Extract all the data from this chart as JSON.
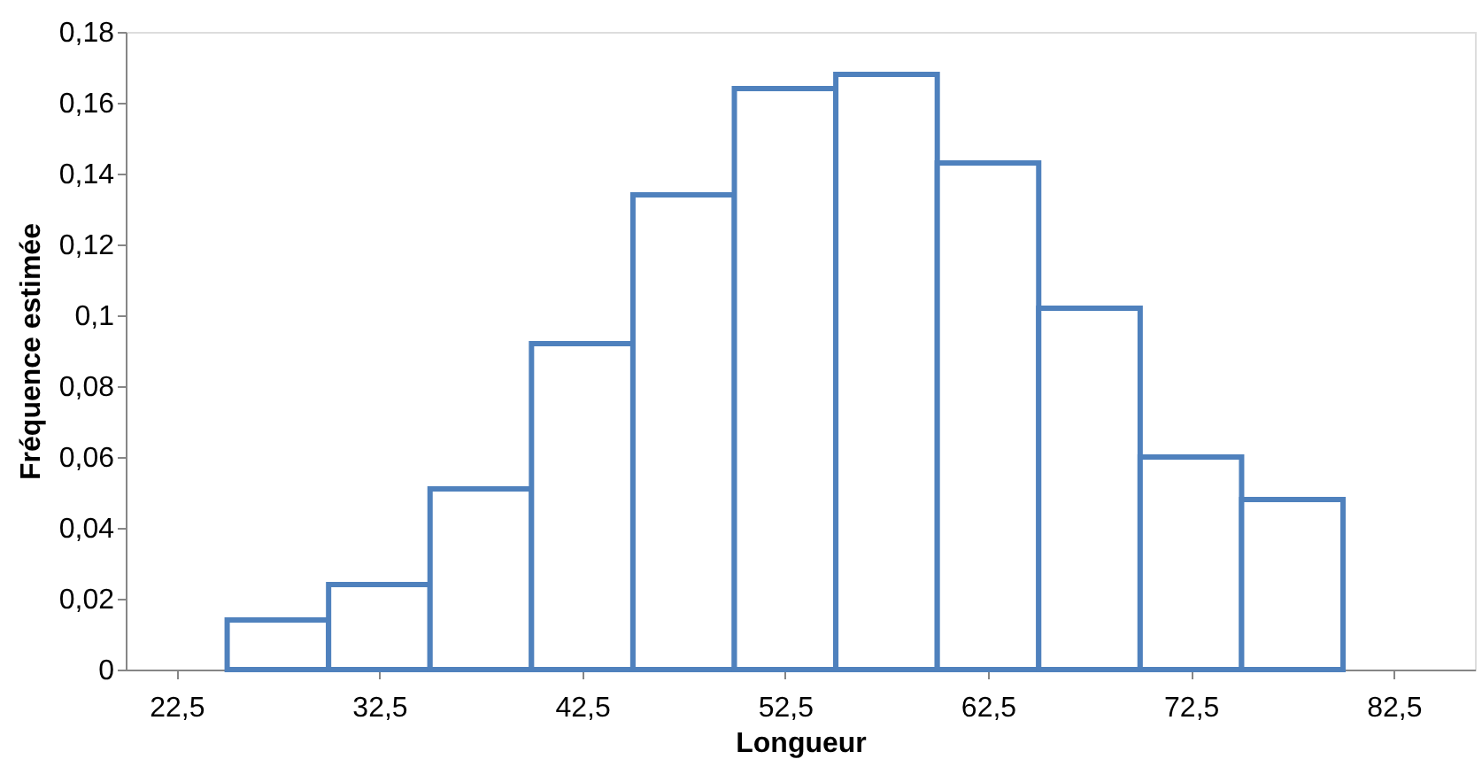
{
  "chart_data": {
    "type": "histogram",
    "xlabel": "Longueur",
    "ylabel": "Fréquence estimée",
    "bins": [
      25,
      30,
      35,
      40,
      45,
      50,
      55,
      60,
      65,
      70,
      75,
      80
    ],
    "values": [
      0.014,
      0.024,
      0.051,
      0.092,
      0.134,
      0.164,
      0.168,
      0.143,
      0.102,
      0.06,
      0.048
    ],
    "color": "#4f81bd",
    "xlim": [
      20,
      86.5
    ],
    "xticks": [
      {
        "value": 22.5,
        "label": "22,5"
      },
      {
        "value": 32.5,
        "label": "32,5"
      },
      {
        "value": 42.5,
        "label": "42,5"
      },
      {
        "value": 52.5,
        "label": "52,5"
      },
      {
        "value": 62.5,
        "label": "62,5"
      },
      {
        "value": 72.5,
        "label": "72,5"
      },
      {
        "value": 82.5,
        "label": "82,5"
      }
    ],
    "ylim": [
      0,
      0.18
    ],
    "yticks": [
      0,
      {
        "value": 0.02,
        "label": "0,02"
      },
      {
        "value": 0.04,
        "label": "0,04"
      },
      {
        "value": 0.06,
        "label": "0,06"
      },
      {
        "value": 0.08,
        "label": "0,08"
      },
      {
        "value": 0.1,
        "label": "0,1"
      },
      {
        "value": 0.12,
        "label": "0,12"
      },
      {
        "value": 0.14,
        "label": "0,14"
      },
      {
        "value": 0.16,
        "label": "0,16"
      },
      {
        "value": 0.18,
        "label": "0,18"
      }
    ],
    "grid": false
  }
}
